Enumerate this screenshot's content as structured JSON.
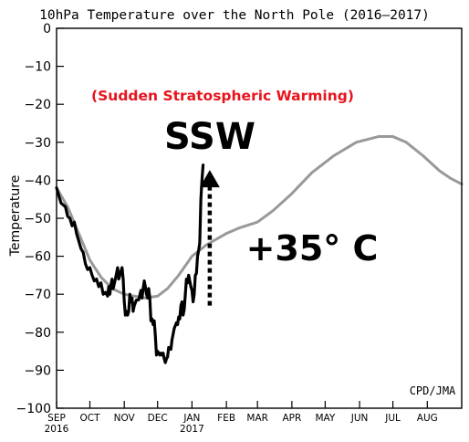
{
  "chart_data": {
    "type": "line",
    "title": "10hPa Temperature over the North Pole (2016–2017)",
    "ylabel": "Temperature",
    "xlabel": "",
    "ylim": [
      -100,
      0
    ],
    "yticks": [
      0,
      -10,
      -20,
      -30,
      -40,
      -50,
      -60,
      -70,
      -80,
      -90,
      -100
    ],
    "ytick_labels": [
      "0",
      "−10",
      "−20",
      "−30",
      "−40",
      "−50",
      "−60",
      "−70",
      "−80",
      "−90",
      "−100"
    ],
    "xlim": [
      0,
      365
    ],
    "xticks": [
      {
        "day": 0,
        "label": "SEP",
        "sub": "2016"
      },
      {
        "day": 30,
        "label": "OCT"
      },
      {
        "day": 61,
        "label": "NOV"
      },
      {
        "day": 91,
        "label": "DEC"
      },
      {
        "day": 122,
        "label": "JAN",
        "sub": "2017"
      },
      {
        "day": 153,
        "label": "FEB"
      },
      {
        "day": 181,
        "label": "MAR"
      },
      {
        "day": 212,
        "label": "APR"
      },
      {
        "day": 242,
        "label": "MAY"
      },
      {
        "day": 273,
        "label": "JUN"
      },
      {
        "day": 303,
        "label": "JUL"
      },
      {
        "day": 334,
        "label": "AUG"
      }
    ],
    "grid": false,
    "series": [
      {
        "name": "",
        "color": "#999999",
        "points": [
          [
            0,
            -42
          ],
          [
            10,
            -47
          ],
          [
            20,
            -54
          ],
          [
            30,
            -61
          ],
          [
            40,
            -65.5
          ],
          [
            50,
            -68.5
          ],
          [
            61,
            -70
          ],
          [
            70,
            -70.5
          ],
          [
            80,
            -71
          ],
          [
            91,
            -70.5
          ],
          [
            100,
            -68.5
          ],
          [
            110,
            -65
          ],
          [
            122,
            -60
          ],
          [
            135,
            -57
          ],
          [
            153,
            -54
          ],
          [
            165,
            -52.5
          ],
          [
            181,
            -51
          ],
          [
            195,
            -48
          ],
          [
            212,
            -43.5
          ],
          [
            230,
            -38
          ],
          [
            250,
            -33.5
          ],
          [
            270,
            -30
          ],
          [
            290,
            -28.5
          ],
          [
            303,
            -28.5
          ],
          [
            315,
            -30
          ],
          [
            330,
            -33.5
          ],
          [
            345,
            -37.5
          ],
          [
            355,
            -39.5
          ],
          [
            365,
            -41
          ]
        ]
      },
      {
        "name": "",
        "color": "#000000",
        "points": [
          [
            0,
            -42
          ],
          [
            2,
            -44
          ],
          [
            4,
            -46
          ],
          [
            6,
            -46.5
          ],
          [
            8,
            -47
          ],
          [
            10,
            -49.5
          ],
          [
            12,
            -50
          ],
          [
            14,
            -52
          ],
          [
            16,
            -51
          ],
          [
            18,
            -54
          ],
          [
            20,
            -56
          ],
          [
            22,
            -58
          ],
          [
            24,
            -59
          ],
          [
            26,
            -62
          ],
          [
            28,
            -63.5
          ],
          [
            30,
            -63
          ],
          [
            32,
            -65
          ],
          [
            34,
            -66.5
          ],
          [
            36,
            -66
          ],
          [
            38,
            -68
          ],
          [
            40,
            -67
          ],
          [
            42,
            -70
          ],
          [
            44,
            -69.5
          ],
          [
            46,
            -70.5
          ],
          [
            47,
            -68
          ],
          [
            48,
            -70
          ],
          [
            49,
            -67.5
          ],
          [
            50,
            -66
          ],
          [
            51,
            -68.5
          ],
          [
            53,
            -66
          ],
          [
            55,
            -63
          ],
          [
            56,
            -66
          ],
          [
            58,
            -64
          ],
          [
            59,
            -63
          ],
          [
            60,
            -66
          ],
          [
            61,
            -72
          ],
          [
            62,
            -75.5
          ],
          [
            63,
            -74.5
          ],
          [
            64,
            -75.5
          ],
          [
            65,
            -74.5
          ],
          [
            66,
            -70
          ],
          [
            67,
            -72
          ],
          [
            68,
            -71
          ],
          [
            69,
            -74.5
          ],
          [
            70,
            -73
          ],
          [
            72,
            -71.5
          ],
          [
            74,
            -71.5
          ],
          [
            76,
            -69
          ],
          [
            77,
            -71
          ],
          [
            78,
            -68.5
          ],
          [
            79,
            -66.5
          ],
          [
            80,
            -68
          ],
          [
            81,
            -70
          ],
          [
            82,
            -71
          ],
          [
            83,
            -68.5
          ],
          [
            84,
            -71
          ],
          [
            85,
            -77
          ],
          [
            86,
            -76.5
          ],
          [
            87,
            -78
          ],
          [
            88,
            -77
          ],
          [
            89,
            -81
          ],
          [
            90,
            -86
          ],
          [
            91,
            -85
          ],
          [
            93,
            -86
          ],
          [
            94,
            -85.5
          ],
          [
            95,
            -86
          ],
          [
            96,
            -85.5
          ],
          [
            97,
            -87
          ],
          [
            98,
            -88
          ],
          [
            99,
            -87
          ],
          [
            100,
            -86.5
          ],
          [
            101,
            -84
          ],
          [
            103,
            -84.5
          ],
          [
            104,
            -82
          ],
          [
            105,
            -80.5
          ],
          [
            106,
            -79
          ],
          [
            108,
            -77.5
          ],
          [
            109,
            -78
          ],
          [
            110,
            -76
          ],
          [
            111,
            -76.5
          ],
          [
            112,
            -73
          ],
          [
            113,
            -72
          ],
          [
            114,
            -75.5
          ],
          [
            115,
            -74
          ],
          [
            116,
            -70
          ],
          [
            117,
            -66
          ],
          [
            118,
            -67
          ],
          [
            119,
            -65
          ],
          [
            121,
            -68
          ],
          [
            122,
            -69
          ],
          [
            123,
            -72
          ],
          [
            124,
            -70
          ],
          [
            125,
            -65
          ],
          [
            126,
            -64.5
          ],
          [
            127,
            -60
          ],
          [
            128,
            -58.5
          ],
          [
            129,
            -56.5
          ],
          [
            130,
            -45
          ],
          [
            131,
            -40
          ],
          [
            132,
            -36
          ]
        ]
      }
    ],
    "annotations": [
      {
        "id": "ssw-full",
        "text": "(Sudden Stratospheric Warming)",
        "color": "#e8141c"
      },
      {
        "id": "ssw-label",
        "text": "SSW"
      },
      {
        "id": "delta",
        "text": "+35° C"
      },
      {
        "id": "arrow",
        "from_y": -73,
        "to_y": -38,
        "day": 138,
        "style": "dotted-arrow-up"
      }
    ],
    "credit": "CPD/JMA"
  }
}
